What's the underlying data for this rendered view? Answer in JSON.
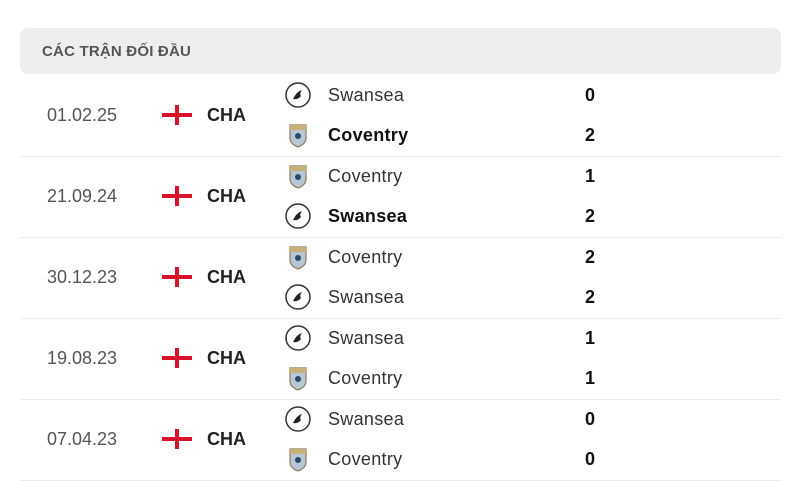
{
  "header": {
    "title": "CÁC TRẬN ĐỐI ĐẦU"
  },
  "colors": {
    "flag_red": "#d9112a",
    "header_bg": "#eeeeee"
  },
  "matches": [
    {
      "date": "01.02.25",
      "competition": "CHA",
      "flag_icon": "england-flag-icon",
      "home": {
        "name": "Swansea",
        "score": "0",
        "winner": false,
        "logo": "swansea"
      },
      "away": {
        "name": "Coventry",
        "score": "2",
        "winner": true,
        "logo": "coventry"
      }
    },
    {
      "date": "21.09.24",
      "competition": "CHA",
      "flag_icon": "england-flag-icon",
      "home": {
        "name": "Coventry",
        "score": "1",
        "winner": false,
        "logo": "coventry"
      },
      "away": {
        "name": "Swansea",
        "score": "2",
        "winner": true,
        "logo": "swansea"
      }
    },
    {
      "date": "30.12.23",
      "competition": "CHA",
      "flag_icon": "england-flag-icon",
      "home": {
        "name": "Coventry",
        "score": "2",
        "winner": false,
        "logo": "coventry"
      },
      "away": {
        "name": "Swansea",
        "score": "2",
        "winner": false,
        "logo": "swansea"
      }
    },
    {
      "date": "19.08.23",
      "competition": "CHA",
      "flag_icon": "england-flag-icon",
      "home": {
        "name": "Swansea",
        "score": "1",
        "winner": false,
        "logo": "swansea"
      },
      "away": {
        "name": "Coventry",
        "score": "1",
        "winner": false,
        "logo": "coventry"
      }
    },
    {
      "date": "07.04.23",
      "competition": "CHA",
      "flag_icon": "england-flag-icon",
      "home": {
        "name": "Swansea",
        "score": "0",
        "winner": false,
        "logo": "swansea"
      },
      "away": {
        "name": "Coventry",
        "score": "0",
        "winner": false,
        "logo": "coventry"
      }
    }
  ]
}
